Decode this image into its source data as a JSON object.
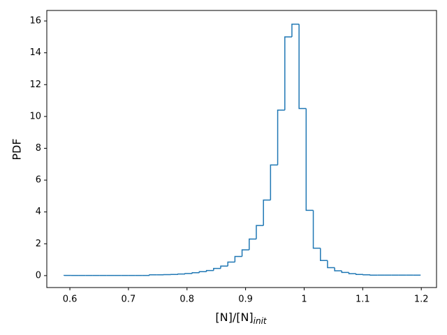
{
  "chart_data": {
    "type": "histogram",
    "ylabel": "PDF",
    "xlabel": "[N]/[N]",
    "xlabel_sub": "init",
    "color": "#1f77b4",
    "bins": [
      0.59,
      0.6022,
      0.6143,
      0.6265,
      0.6386,
      0.6508,
      0.663,
      0.6751,
      0.6873,
      0.6994,
      0.7116,
      0.7238,
      0.7359,
      0.7481,
      0.7602,
      0.7724,
      0.7846,
      0.7967,
      0.8089,
      0.821,
      0.8332,
      0.8454,
      0.8575,
      0.8697,
      0.8818,
      0.894,
      0.9062,
      0.9183,
      0.9305,
      0.9426,
      0.9548,
      0.967,
      0.9791,
      0.9913,
      1.0034,
      1.0156,
      1.0278,
      1.0399,
      1.0521,
      1.0642,
      1.0764,
      1.0886,
      1.1007,
      1.1129,
      1.125,
      1.1372,
      1.1494,
      1.1615,
      1.1737,
      1.1858,
      1.198
    ],
    "counts": [
      0.01,
      0.01,
      0.01,
      0.01,
      0.01,
      0.01,
      0.01,
      0.01,
      0.01,
      0.01,
      0.01,
      0.01,
      0.05,
      0.05,
      0.06,
      0.07,
      0.1,
      0.13,
      0.18,
      0.25,
      0.32,
      0.45,
      0.6,
      0.85,
      1.2,
      1.62,
      2.3,
      3.15,
      4.75,
      6.95,
      10.4,
      15.0,
      15.8,
      10.5,
      4.1,
      1.72,
      0.95,
      0.5,
      0.3,
      0.2,
      0.12,
      0.07,
      0.05,
      0.03,
      0.03,
      0.03,
      0.03,
      0.03,
      0.03,
      0.03
    ],
    "xlim": [
      0.5606,
      1.226
    ],
    "ylim": [
      -0.75,
      16.66
    ],
    "xticks": [
      0.6,
      0.7,
      0.8,
      0.9,
      1.0,
      1.1,
      1.2
    ],
    "yticks": [
      0,
      2,
      4,
      6,
      8,
      10,
      12,
      14,
      16
    ]
  }
}
